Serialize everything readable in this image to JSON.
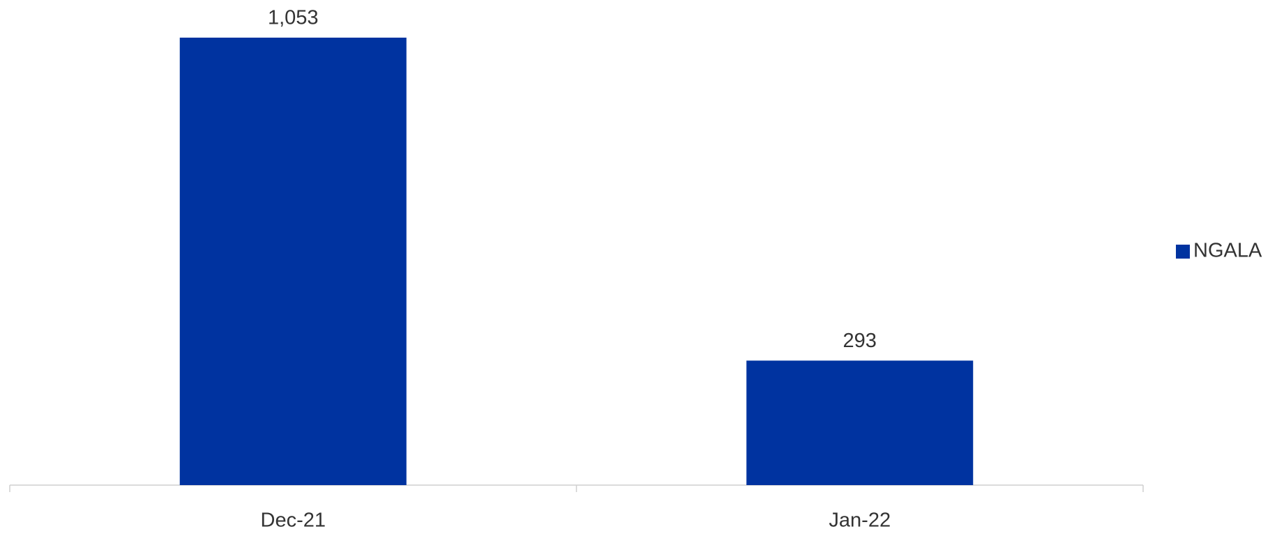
{
  "chart_data": {
    "type": "bar",
    "categories": [
      "Dec-21",
      "Jan-22"
    ],
    "series": [
      {
        "name": "NGALA",
        "color": "#0033a0",
        "values": [
          1053,
          293
        ],
        "value_labels": [
          "1,053",
          "293"
        ]
      }
    ],
    "legend": "right"
  }
}
